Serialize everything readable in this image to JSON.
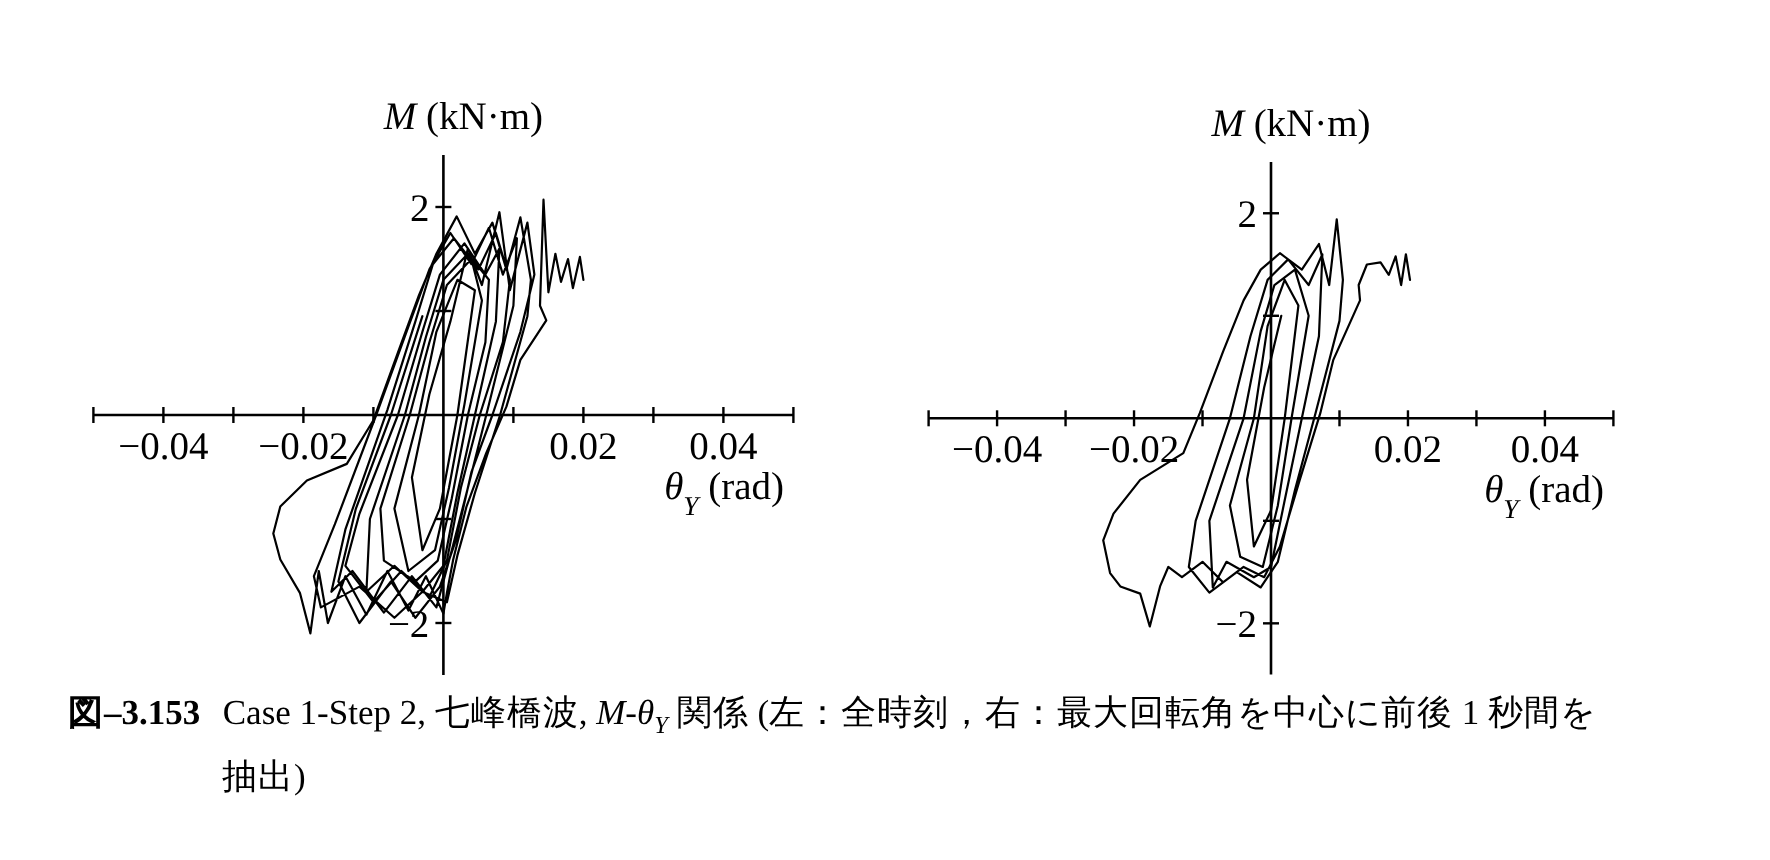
{
  "chart_data": [
    {
      "type": "line",
      "xlabel": "*θ*$_{Y}$ (rad)",
      "ylabel": "*M* (kN·m)",
      "color": "#000000",
      "xlim": [
        -0.05,
        0.05
      ],
      "ylim": [
        -2.5,
        2.5
      ],
      "xticks": [
        {
          "value": -0.05,
          "label": null
        },
        {
          "value": -0.04,
          "label": "−0.04"
        },
        {
          "value": -0.03,
          "label": null
        },
        {
          "value": -0.02,
          "label": "−0.02"
        },
        {
          "value": -0.01,
          "label": null
        },
        {
          "value": 0.01,
          "label": null
        },
        {
          "value": 0.02,
          "label": "0.02"
        },
        {
          "value": 0.03,
          "label": null
        },
        {
          "value": 0.04,
          "label": "0.04"
        },
        {
          "value": 0.05,
          "label": null
        }
      ],
      "yticks": [
        {
          "value": -2,
          "label": "−2"
        },
        {
          "value": -1,
          "label": null
        },
        {
          "value": 1,
          "label": null
        },
        2
      ],
      "x": [
        0.02,
        0.0195,
        0.0185,
        0.0178,
        0.0168,
        0.016,
        0.015,
        0.0143,
        0.0138,
        0.0147,
        0.011,
        0.009,
        0.0061,
        0.0033,
        0.0014,
        0.0005,
        0,
        -0.0025,
        -0.005,
        -0.008,
        -0.011,
        -0.014,
        -0.0165,
        -0.0178,
        -0.019,
        -0.0205,
        -0.0233,
        -0.0243,
        -0.0233,
        -0.0195,
        -0.0138,
        -0.01,
        -0.0065,
        -0.0035,
        -0.001,
        0.0019,
        0.0045,
        0.007,
        0.009,
        0.011,
        0.0125,
        0.012,
        0.0081,
        0.0045,
        0.002,
        0.0005,
        -0.003,
        -0.007,
        -0.012,
        -0.0175,
        -0.0185,
        -0.0155,
        -0.0096,
        -0.005,
        -0.002,
        0.001,
        0.004,
        0.0065,
        0.0085,
        0.0105,
        0.01,
        0.0065,
        0.0035,
        0.0012,
        -0.001,
        -0.0045,
        -0.0085,
        -0.013,
        -0.016,
        -0.014,
        -0.008,
        -0.004,
        -0.0015,
        0.0015,
        0.005,
        0.0075,
        0.0095,
        0.0085,
        0.0052,
        0.0025,
        0.0005,
        -0.002,
        -0.006,
        -0.01,
        -0.014,
        -0.012,
        -0.0065,
        -0.003,
        -0.0005,
        0.003,
        0.006,
        0.008,
        0.0075,
        0.0045,
        0.002,
        0,
        -0.003,
        -0.007,
        -0.011,
        -0.0105,
        -0.0055,
        -0.0025,
        0,
        0.0035,
        0.0065,
        0.006,
        0.0035,
        0.0012,
        -0.0008,
        -0.004,
        -0.0085,
        -0.009,
        -0.0048,
        -0.002,
        0.0005,
        0.004,
        0.0055,
        0.003,
        0.0008,
        -0.0012,
        -0.005,
        -0.007,
        -0.0035,
        -0.001,
        0.002,
        0.0045,
        0.002,
        -0.0005,
        -0.003,
        -0.0045,
        -0.002,
        0.001,
        0.0035,
        0.0055,
        0.008,
        0.0095,
        0.012,
        0.013,
        0.011,
        0.007,
        0.004,
        0.0018,
        -0.0005,
        -0.004,
        -0.0075,
        -0.012,
        -0.015,
        -0.0125,
        -0.0075,
        -0.003
      ],
      "values": [
        1.3,
        1.52,
        1.22,
        1.5,
        1.28,
        1.55,
        1.18,
        2.07,
        1.05,
        0.91,
        0.53,
        0.08,
        -0.37,
        -0.88,
        -1.39,
        -1.71,
        -1.91,
        -1.55,
        -1.88,
        -1.5,
        -1.92,
        -1.55,
        -2.0,
        -1.5,
        -2.1,
        -1.71,
        -1.39,
        -1.14,
        -0.88,
        -0.63,
        -0.47,
        -0.05,
        0.6,
        1.15,
        1.55,
        1.91,
        1.55,
        1.85,
        1.4,
        1.9,
        1.3,
        0.95,
        0.0,
        -0.75,
        -1.35,
        -1.8,
        -1.7,
        -1.95,
        -1.65,
        -1.85,
        -1.55,
        -1.05,
        0.0,
        0.85,
        1.4,
        1.75,
        1.45,
        1.8,
        1.35,
        1.7,
        1.05,
        0.1,
        -0.7,
        -1.3,
        -1.85,
        -1.55,
        -1.9,
        -1.5,
        -1.7,
        -1.1,
        0.05,
        0.9,
        1.45,
        1.7,
        1.4,
        1.75,
        1.3,
        0.7,
        0.0,
        -0.7,
        -1.4,
        -1.75,
        -1.5,
        -1.8,
        -1.45,
        -0.95,
        0.0,
        0.8,
        1.35,
        1.65,
        1.35,
        1.6,
        0.9,
        0.0,
        -0.75,
        -1.45,
        -1.7,
        -1.45,
        -1.7,
        -1.0,
        0.0,
        0.75,
        1.3,
        1.55,
        1.3,
        0.7,
        0.0,
        -0.8,
        -1.4,
        -1.6,
        -1.4,
        -0.9,
        0.0,
        0.7,
        1.25,
        1.5,
        1.1,
        0.1,
        -0.7,
        -1.3,
        -1.5,
        -0.9,
        0.0,
        0.8,
        1.3,
        1.2,
        0.0,
        -0.9,
        -1.3,
        -0.6,
        0.2,
        0.9,
        1.6,
        1.25,
        1.95,
        1.2,
        1.85,
        1.35,
        0.8,
        0.0,
        -0.55,
        -1.2,
        -1.65,
        -1.95,
        -1.6,
        -2.0,
        -1.6,
        -0.9,
        0.0,
        0.95
      ],
      "annotations": [
        "**図–3.153** Case 1-Step 2, 七峰橋波, *M*-*θ*$_{Y}$ 関係 (左：全時刻，右：最大回転角を中心に前後 1 秒間を抽出)"
      ]
    },
    {
      "type": "line",
      "xlabel": "*θ*$_{Y}$ (rad)",
      "ylabel": "*M* (kN·m)",
      "color": "#000000",
      "xlim": [
        -0.05,
        0.05
      ],
      "ylim": [
        -2.5,
        2.5
      ],
      "xticks": [
        {
          "value": -0.05,
          "label": null
        },
        {
          "value": -0.04,
          "label": "−0.04"
        },
        {
          "value": -0.03,
          "label": null
        },
        {
          "value": -0.02,
          "label": "−0.02"
        },
        {
          "value": -0.01,
          "label": null
        },
        {
          "value": 0.01,
          "label": null
        },
        {
          "value": 0.02,
          "label": "0.02"
        },
        {
          "value": 0.03,
          "label": null
        },
        {
          "value": 0.04,
          "label": "0.04"
        },
        {
          "value": 0.05,
          "label": null
        }
      ],
      "yticks": [
        {
          "value": -2,
          "label": "−2"
        },
        {
          "value": -1,
          "label": null
        },
        {
          "value": 1,
          "label": null
        },
        2
      ],
      "x": [
        0.0203,
        0.0197,
        0.019,
        0.0182,
        0.0172,
        0.016,
        0.014,
        0.0128,
        0.013,
        0.0091,
        0.0072,
        0.0042,
        0.0013,
        -0.001,
        -0.004,
        -0.007,
        -0.01,
        -0.013,
        -0.015,
        -0.0162,
        -0.0177,
        -0.0191,
        -0.022,
        -0.0235,
        -0.0245,
        -0.023,
        -0.0191,
        -0.0128,
        -0.0104,
        -0.007,
        -0.004,
        -0.0015,
        0.0013,
        0.0045,
        0.007,
        0.0085,
        0.0096,
        0.0105,
        0.01,
        0.0065,
        0.0035,
        0.001,
        -0.0015,
        -0.005,
        -0.009,
        -0.012,
        -0.011,
        -0.006,
        -0.003,
        -0.0005,
        0.0025,
        0.0055,
        0.0075,
        0.007,
        0.0045,
        0.002,
        0,
        -0.0025,
        -0.0065,
        -0.0085,
        -0.009,
        -0.004,
        -0.0015,
        0.0005,
        0.0035,
        0.0055,
        0.003,
        0.001,
        -0.0012,
        -0.0045,
        -0.006,
        -0.0025,
        -0.0005,
        0.002,
        0.004,
        0.002,
        0,
        -0.0025,
        -0.0035,
        -0.001,
        0.0015
      ],
      "values": [
        1.35,
        1.6,
        1.3,
        1.58,
        1.4,
        1.52,
        1.5,
        1.3,
        1.15,
        0.57,
        0.05,
        -0.6,
        -1.25,
        -1.55,
        -1.45,
        -1.6,
        -1.4,
        -1.55,
        -1.45,
        -1.64,
        -2.03,
        -1.71,
        -1.64,
        -1.51,
        -1.19,
        -0.93,
        -0.6,
        -0.34,
        0.05,
        0.65,
        1.15,
        1.45,
        1.61,
        1.45,
        1.7,
        1.3,
        1.94,
        1.35,
        0.95,
        0.05,
        -0.7,
        -1.4,
        -1.65,
        -1.5,
        -1.7,
        -1.45,
        -1.0,
        0.0,
        0.8,
        1.35,
        1.55,
        1.3,
        1.6,
        0.8,
        0.0,
        -0.8,
        -1.45,
        -1.55,
        -1.4,
        -1.65,
        -1.0,
        0.0,
        0.85,
        1.3,
        1.45,
        1.0,
        0.0,
        -0.85,
        -1.45,
        -1.35,
        -0.85,
        0.0,
        0.9,
        1.35,
        1.1,
        0.0,
        -0.9,
        -1.25,
        -0.6,
        0.3,
        1.0
      ]
    }
  ]
}
